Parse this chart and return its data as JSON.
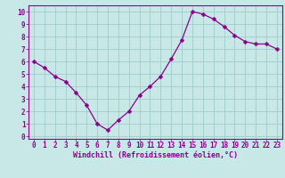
{
  "x": [
    0,
    1,
    2,
    3,
    4,
    5,
    6,
    7,
    8,
    9,
    10,
    11,
    12,
    13,
    14,
    15,
    16,
    17,
    18,
    19,
    20,
    21,
    22,
    23
  ],
  "y": [
    6.0,
    5.5,
    4.8,
    4.4,
    3.5,
    2.5,
    1.0,
    0.5,
    1.3,
    2.0,
    3.3,
    4.0,
    4.8,
    6.2,
    7.7,
    10.0,
    9.8,
    9.4,
    8.8,
    8.1,
    7.6,
    7.4,
    7.4,
    7.0
  ],
  "line_color": "#8b008b",
  "marker": "D",
  "marker_size": 2.5,
  "bg_color": "#c8e8e8",
  "grid_color": "#a0cccc",
  "xlabel": "Windchill (Refroidissement éolien,°C)",
  "xlabel_color": "#8b008b",
  "xlabel_fontsize": 6.0,
  "xtick_labels": [
    "0",
    "1",
    "2",
    "3",
    "4",
    "5",
    "6",
    "7",
    "8",
    "9",
    "10",
    "11",
    "12",
    "13",
    "14",
    "15",
    "16",
    "17",
    "18",
    "19",
    "20",
    "21",
    "22",
    "23"
  ],
  "ytick_labels": [
    "0",
    "1",
    "2",
    "3",
    "4",
    "5",
    "6",
    "7",
    "8",
    "9",
    "10"
  ],
  "xlim": [
    -0.5,
    23.5
  ],
  "ylim": [
    -0.2,
    10.5
  ],
  "tick_color": "#8b008b",
  "tick_fontsize": 5.5,
  "axis_label_color": "#8b008b"
}
